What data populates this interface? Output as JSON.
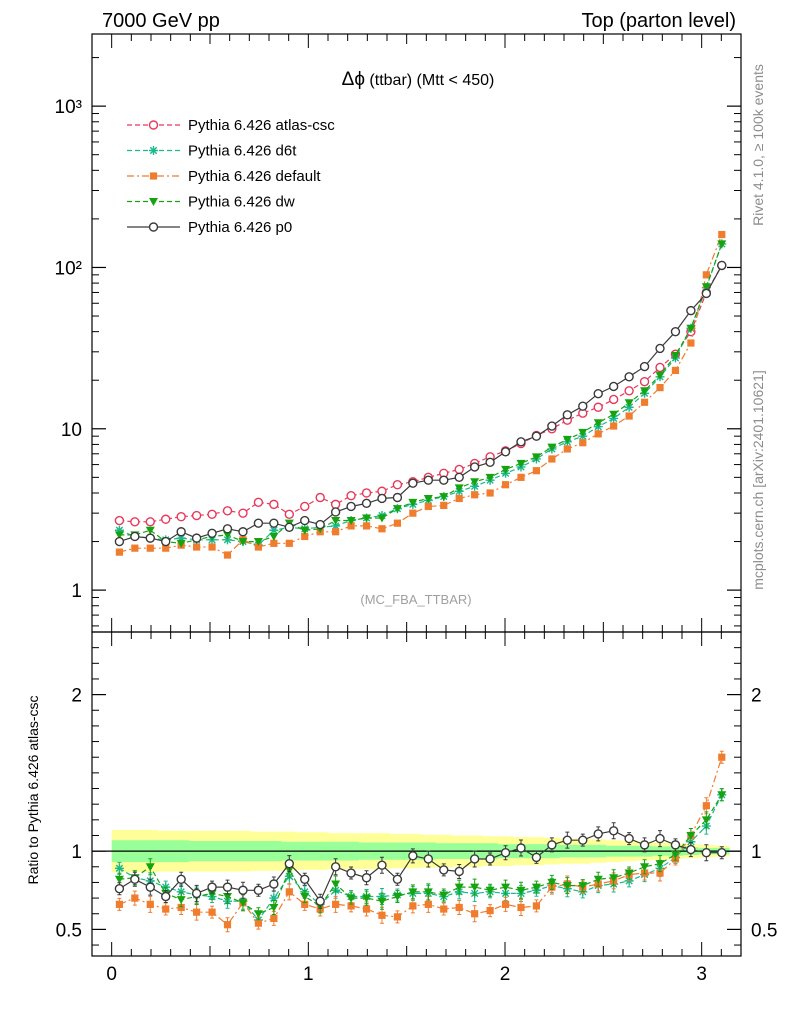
{
  "header": {
    "left": "7000 GeV pp",
    "right": "Top (parton level)"
  },
  "side_text": {
    "rivet": "Rivet 4.1.0, ≥ 100k events",
    "mcplots": "mcplots.cern.ch [arXiv:2401.10621]"
  },
  "watermark": "(MC_FBA_TTBAR)",
  "colors": {
    "atlas_csc": "#e8385a",
    "d6t": "#1ab88c",
    "default": "#f07c2e",
    "dw": "#17a30f",
    "p0": "#3a3a3a",
    "band_outer": "#ffff99",
    "band_inner": "#99ff99"
  },
  "chart_data": [
    {
      "type": "line",
      "panel": "main",
      "title": "Δϕ (ttbar) (Mtt < 450)",
      "title_prefix": "Δϕ",
      "title_rest": " (ttbar) (Mtt < 450)",
      "xlabel": "",
      "ylabel": "",
      "yscale": "log",
      "xlim": [
        -0.1,
        3.2
      ],
      "ylim": [
        0.55,
        2800
      ],
      "y_tick_labels": [
        "1",
        "10",
        "10²",
        "10³"
      ],
      "y_tick_values": [
        1,
        10,
        100,
        1000
      ],
      "legend_position": "top-left",
      "x": [
        0.0393,
        0.1178,
        0.1963,
        0.2749,
        0.3534,
        0.432,
        0.5105,
        0.589,
        0.6676,
        0.7461,
        0.8247,
        0.9032,
        0.9817,
        1.0603,
        1.1388,
        1.2174,
        1.2959,
        1.3744,
        1.453,
        1.5315,
        1.6101,
        1.6886,
        1.7671,
        1.8457,
        1.9242,
        2.0028,
        2.0813,
        2.1598,
        2.2384,
        2.3169,
        2.3955,
        2.474,
        2.5525,
        2.6311,
        2.7096,
        2.7882,
        2.8667,
        2.9452,
        3.0238,
        3.1023
      ],
      "series": [
        {
          "name": "Pythia 6.426 atlas-csc",
          "key": "atlas_csc",
          "marker": "open-circle",
          "dash": "dashed",
          "values": [
            2.7,
            2.65,
            2.65,
            2.75,
            2.85,
            2.9,
            2.95,
            3.1,
            3.0,
            3.5,
            3.4,
            2.95,
            3.3,
            3.75,
            3.4,
            3.85,
            4.0,
            4.1,
            4.5,
            4.7,
            5.0,
            5.3,
            5.6,
            6.1,
            6.7,
            7.3,
            8.1,
            9.1,
            10.0,
            11.3,
            12.5,
            13.6,
            15.2,
            17.2,
            19.6,
            24.0,
            29.0,
            40.0,
            70.0,
            103.0
          ]
        },
        {
          "name": "Pythia 6.426 d6t",
          "key": "d6t",
          "marker": "star",
          "dash": "dashed",
          "values": [
            2.35,
            2.15,
            2.1,
            2.05,
            2.1,
            2.05,
            2.05,
            2.05,
            2.0,
            1.9,
            2.35,
            2.45,
            2.4,
            2.45,
            2.5,
            2.7,
            2.8,
            2.9,
            3.2,
            3.4,
            3.6,
            3.8,
            4.1,
            4.4,
            4.8,
            5.3,
            5.8,
            6.5,
            7.5,
            8.3,
            9.0,
            10.3,
            11.6,
            13.6,
            16.6,
            21.0,
            27.5,
            42.0,
            75.0,
            140.0
          ]
        },
        {
          "name": "Pythia 6.426 default",
          "key": "default",
          "marker": "filled-square",
          "dash": "dashdot",
          "values": [
            1.72,
            1.82,
            1.82,
            1.82,
            1.9,
            1.85,
            1.85,
            1.65,
            2.05,
            1.85,
            1.95,
            1.95,
            2.15,
            2.3,
            2.3,
            2.5,
            2.5,
            2.4,
            2.6,
            3.0,
            3.3,
            3.35,
            3.7,
            3.9,
            4.0,
            4.5,
            5.0,
            5.5,
            6.5,
            7.5,
            8.2,
            9.3,
            10.4,
            12.0,
            14.6,
            18.0,
            23.0,
            34.0,
            90.0,
            160.0
          ]
        },
        {
          "name": "Pythia 6.426 dw",
          "key": "dw",
          "marker": "filled-triangle-down",
          "dash": "dashed",
          "values": [
            2.2,
            2.2,
            2.35,
            2.0,
            1.95,
            2.05,
            2.15,
            2.2,
            2.0,
            2.0,
            2.15,
            2.6,
            2.35,
            2.4,
            2.7,
            2.7,
            2.8,
            2.8,
            3.2,
            3.5,
            3.7,
            3.8,
            4.3,
            4.7,
            5.0,
            5.6,
            6.1,
            6.7,
            7.7,
            8.6,
            9.5,
            10.9,
            12.3,
            14.5,
            17.2,
            21.5,
            28.5,
            42.0,
            76.0,
            140.0
          ]
        },
        {
          "name": "Pythia 6.426 p0",
          "key": "p0",
          "marker": "open-circle",
          "dash": "solid",
          "values": [
            2.0,
            2.15,
            2.1,
            2.0,
            2.3,
            2.1,
            2.25,
            2.4,
            2.3,
            2.6,
            2.6,
            2.45,
            2.7,
            2.55,
            3.05,
            3.3,
            3.45,
            3.7,
            3.75,
            4.6,
            4.8,
            4.8,
            5.0,
            5.8,
            6.2,
            7.2,
            8.3,
            9.0,
            10.4,
            12.2,
            13.8,
            16.5,
            18.3,
            21.0,
            24.3,
            31.5,
            40.0,
            54.0,
            69.0,
            103.0
          ]
        }
      ]
    },
    {
      "type": "line",
      "panel": "ratio",
      "ylabel": "Ratio to Pythia 6.426 atlas-csc",
      "xlim": [
        -0.1,
        3.2
      ],
      "ylim": [
        0.33,
        2.4
      ],
      "x_tick_labels": [
        "0",
        "1",
        "2",
        "3"
      ],
      "x_tick_values": [
        0,
        1,
        2,
        3
      ],
      "y_tick_labels": [
        "0.5",
        "1",
        "2"
      ],
      "y_tick_values": [
        0.5,
        1,
        2
      ],
      "band_outer": [
        0.135,
        0.135,
        0.135,
        0.13,
        0.13,
        0.13,
        0.13,
        0.13,
        0.13,
        0.125,
        0.125,
        0.125,
        0.12,
        0.12,
        0.115,
        0.115,
        0.115,
        0.115,
        0.11,
        0.11,
        0.105,
        0.105,
        0.1,
        0.1,
        0.095,
        0.095,
        0.09,
        0.09,
        0.085,
        0.08,
        0.08,
        0.075,
        0.07,
        0.065,
        0.06,
        0.055,
        0.05,
        0.045,
        0.04,
        0.035
      ],
      "band_inner": [
        0.07,
        0.07,
        0.07,
        0.07,
        0.07,
        0.065,
        0.065,
        0.065,
        0.065,
        0.065,
        0.065,
        0.06,
        0.06,
        0.06,
        0.06,
        0.06,
        0.055,
        0.055,
        0.055,
        0.055,
        0.055,
        0.05,
        0.05,
        0.05,
        0.05,
        0.045,
        0.045,
        0.045,
        0.045,
        0.04,
        0.04,
        0.04,
        0.035,
        0.035,
        0.035,
        0.03,
        0.03,
        0.025,
        0.02,
        0.02
      ],
      "series": [
        {
          "name": "Pythia 6.426 d6t",
          "key": "d6t",
          "values": [
            0.89,
            0.83,
            0.81,
            0.77,
            0.74,
            0.72,
            0.71,
            0.68,
            0.68,
            0.56,
            0.7,
            0.84,
            0.74,
            0.66,
            0.75,
            0.71,
            0.71,
            0.71,
            0.72,
            0.73,
            0.73,
            0.71,
            0.74,
            0.73,
            0.74,
            0.73,
            0.73,
            0.75,
            0.78,
            0.76,
            0.74,
            0.78,
            0.79,
            0.81,
            0.85,
            0.89,
            0.96,
            1.06,
            1.16,
            1.36
          ]
        },
        {
          "name": "Pythia 6.426 default",
          "key": "default",
          "values": [
            0.66,
            0.7,
            0.66,
            0.63,
            0.64,
            0.61,
            0.61,
            0.53,
            0.67,
            0.54,
            0.57,
            0.74,
            0.66,
            0.63,
            0.66,
            0.65,
            0.63,
            0.59,
            0.58,
            0.65,
            0.66,
            0.63,
            0.64,
            0.6,
            0.62,
            0.66,
            0.64,
            0.65,
            0.77,
            0.79,
            0.77,
            0.79,
            0.81,
            0.85,
            0.86,
            0.86,
            0.95,
            1.1,
            1.29,
            1.6
          ]
        },
        {
          "name": "Pythia 6.426 dw",
          "key": "dw",
          "values": [
            0.82,
            0.83,
            0.9,
            0.73,
            0.69,
            0.71,
            0.73,
            0.71,
            0.67,
            0.6,
            0.64,
            0.88,
            0.71,
            0.65,
            0.79,
            0.7,
            0.7,
            0.68,
            0.71,
            0.74,
            0.74,
            0.72,
            0.77,
            0.77,
            0.75,
            0.77,
            0.75,
            0.77,
            0.8,
            0.78,
            0.78,
            0.82,
            0.83,
            0.86,
            0.9,
            0.92,
            0.98,
            1.1,
            1.2,
            1.36
          ]
        },
        {
          "name": "Pythia 6.426 p0",
          "key": "p0",
          "values": [
            0.76,
            0.82,
            0.77,
            0.71,
            0.82,
            0.73,
            0.77,
            0.77,
            0.75,
            0.75,
            0.79,
            0.92,
            0.82,
            0.68,
            0.9,
            0.86,
            0.83,
            0.91,
            0.82,
            0.97,
            0.95,
            0.88,
            0.87,
            0.95,
            0.95,
            0.99,
            1.02,
            0.96,
            1.04,
            1.07,
            1.07,
            1.11,
            1.13,
            1.08,
            1.04,
            1.08,
            1.04,
            1.01,
            0.99,
            0.99
          ]
        }
      ]
    }
  ]
}
